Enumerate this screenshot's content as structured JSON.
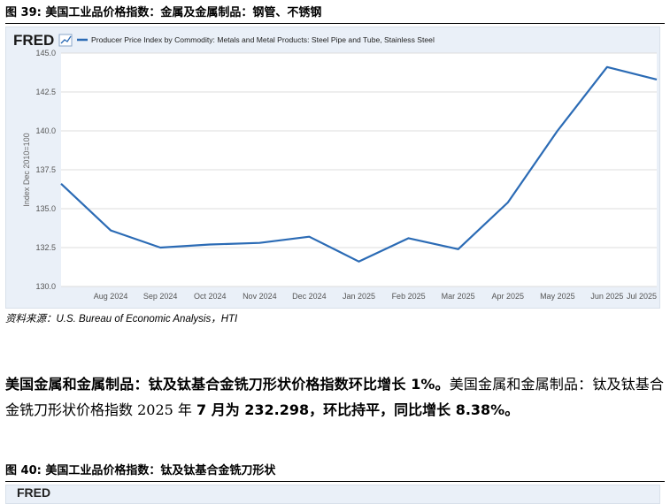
{
  "figure1": {
    "title": "图 39: 美国工业品价格指数：金属及金属制品：钢管、不锈钢",
    "source": "资料来源：U.S. Bureau of Economic Analysis，HTI"
  },
  "chart_data": {
    "type": "line",
    "brand": "FRED",
    "legend_label": "Producer Price Index by Commodity: Metals and Metal Products: Steel Pipe and Tube, Stainless Steel",
    "ylabel": "Index Dec 2010=100",
    "xlabel": "",
    "ylim": [
      130.0,
      145.0
    ],
    "yticks": [
      "145.0",
      "142.5",
      "140.0",
      "137.5",
      "135.0",
      "132.5",
      "130.0"
    ],
    "xtick_labels": [
      "Aug 2024",
      "Sep 2024",
      "Oct 2024",
      "Nov 2024",
      "Dec 2024",
      "Jan 2025",
      "Feb 2025",
      "Mar 2025",
      "Apr 2025",
      "May 2025",
      "Jun 2025",
      "Jul 2025"
    ],
    "series": [
      {
        "x": [
          "Jul 2024",
          "Aug 2024",
          "Sep 2024",
          "Oct 2024",
          "Nov 2024",
          "Dec 2024",
          "Jan 2025",
          "Feb 2025",
          "Mar 2025",
          "Apr 2025",
          "May 2025",
          "Jun 2025",
          "Jul 2025"
        ],
        "values": [
          136.6,
          133.6,
          132.5,
          132.7,
          132.8,
          133.2,
          131.6,
          133.1,
          132.4,
          135.4,
          140.0,
          144.1,
          143.3
        ]
      }
    ],
    "line_color": "#2b6bb5",
    "grid": true
  },
  "paragraph": {
    "lead": "美国金属和金属制品：钛及钛基合金铣刀形状价格指数环比增长 1%。",
    "body1": "美国金属和金属制品：钛及钛基合金铣刀形状价格指数 2025 年 ",
    "bold2": "7 月为 232.298，环比持平，同比增长 8.38%。"
  },
  "figure2": {
    "title": "图 40: 美国工业品价格指数：钛及钛基合金铣刀形状"
  }
}
